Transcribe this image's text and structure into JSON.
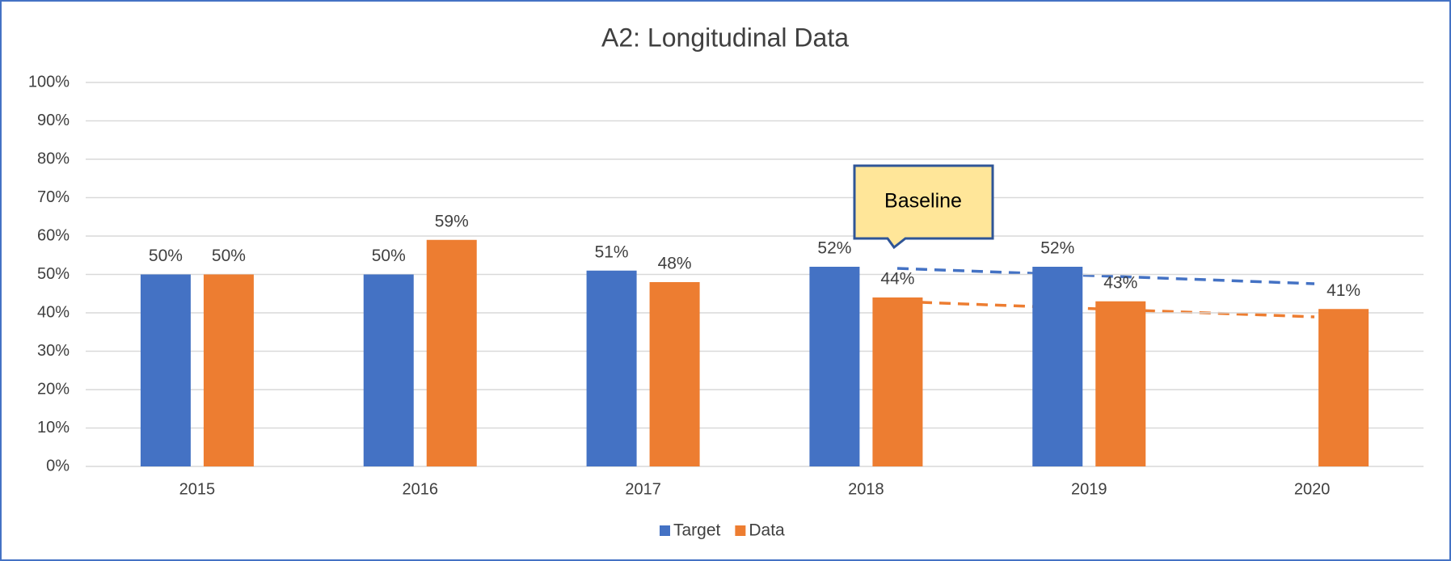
{
  "chart_data": {
    "type": "bar",
    "title": "A2: Longitudinal Data",
    "categories": [
      "2015",
      "2016",
      "2017",
      "2018",
      "2019",
      "2020"
    ],
    "series": [
      {
        "name": "Target",
        "color": "#4472c4",
        "values": [
          50,
          50,
          51,
          52,
          52,
          null
        ],
        "value_labels": [
          "50%",
          "50%",
          "51%",
          "52%",
          "52%",
          null
        ]
      },
      {
        "name": "Data",
        "color": "#ed7d31",
        "values": [
          50,
          59,
          48,
          44,
          43,
          41
        ],
        "value_labels": [
          "50%",
          "59%",
          "48%",
          "44%",
          "43%",
          "41%"
        ]
      }
    ],
    "ylim": [
      0,
      100
    ],
    "yticks": [
      {
        "value": 0,
        "label": "0%"
      },
      {
        "value": 10,
        "label": "10%"
      },
      {
        "value": 20,
        "label": "20%"
      },
      {
        "value": 30,
        "label": "30%"
      },
      {
        "value": 40,
        "label": "40%"
      },
      {
        "value": 50,
        "label": "50%"
      },
      {
        "value": 60,
        "label": "60%"
      },
      {
        "value": 70,
        "label": "70%"
      },
      {
        "value": 80,
        "label": "80%"
      },
      {
        "value": 90,
        "label": "90%"
      },
      {
        "value": 100,
        "label": "100%"
      }
    ],
    "grid": true,
    "legend": "bottom",
    "annotations": [
      "Baseline"
    ]
  }
}
